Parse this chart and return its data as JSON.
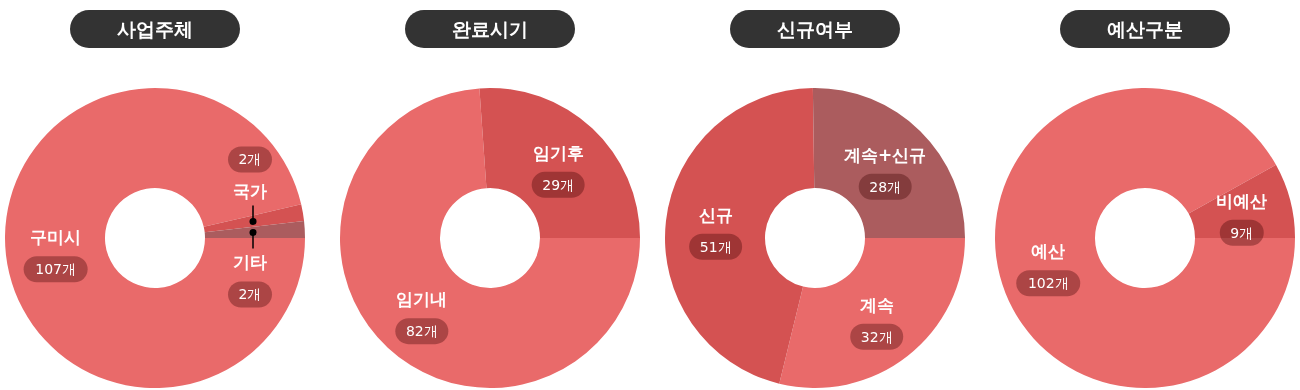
{
  "chart_data": [
    {
      "type": "donut",
      "title": "사업주체",
      "categories": [
        "구미시",
        "국가",
        "기타"
      ],
      "values": [
        107,
        2,
        2
      ],
      "value_labels": [
        "107개",
        "2개",
        "2개"
      ],
      "colors": [
        "#e96a6a",
        "#d45252",
        "#ab5c5e"
      ]
    },
    {
      "type": "donut",
      "title": "완료시기",
      "categories": [
        "임기내",
        "임기후"
      ],
      "values": [
        82,
        29
      ],
      "value_labels": [
        "82개",
        "29개"
      ],
      "colors": [
        "#e96a6a",
        "#d45252"
      ]
    },
    {
      "type": "donut",
      "title": "신규여부",
      "categories": [
        "계속",
        "신규",
        "계속+신규"
      ],
      "values": [
        32,
        51,
        28
      ],
      "value_labels": [
        "32개",
        "51개",
        "28개"
      ],
      "colors": [
        "#e96a6a",
        "#d45252",
        "#ab5c5e"
      ]
    },
    {
      "type": "donut",
      "title": "예산구분",
      "categories": [
        "예산",
        "비예산"
      ],
      "values": [
        102,
        9
      ],
      "value_labels": [
        "102개",
        "9개"
      ],
      "colors": [
        "#e96a6a",
        "#d45252"
      ]
    }
  ]
}
